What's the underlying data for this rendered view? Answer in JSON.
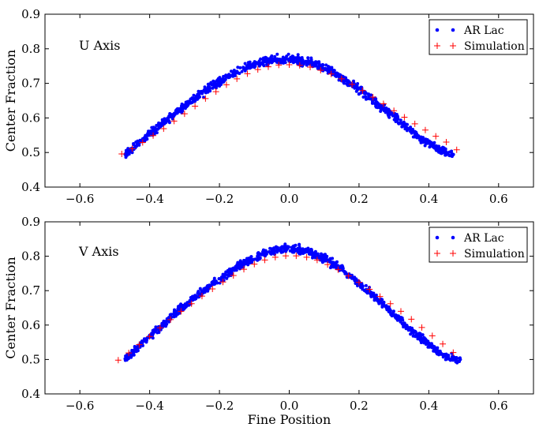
{
  "chart_data": [
    {
      "type": "scatter",
      "title": "",
      "annotation": "U Axis",
      "xlabel": "",
      "ylabel": "Center Fraction",
      "xlim": [
        -0.7,
        0.7
      ],
      "ylim": [
        0.4,
        0.9
      ],
      "xticks": [
        -0.6,
        -0.4,
        -0.2,
        0.0,
        0.2,
        0.4,
        0.6
      ],
      "xtick_labels": [
        "−0.6",
        "−0.4",
        "−0.2",
        "0.0",
        "0.2",
        "0.4",
        "0.6"
      ],
      "yticks": [
        0.4,
        0.5,
        0.6,
        0.7,
        0.8,
        0.9
      ],
      "ytick_labels": [
        "0.4",
        "0.5",
        "0.6",
        "0.7",
        "0.8",
        "0.9"
      ],
      "legend_position": "top-right",
      "grid": false,
      "series": [
        {
          "name": "AR Lac",
          "marker": "dot",
          "color": "#0000ff",
          "x": [
            -0.47,
            -0.45,
            -0.43,
            -0.41,
            -0.39,
            -0.37,
            -0.35,
            -0.33,
            -0.31,
            -0.29,
            -0.27,
            -0.25,
            -0.23,
            -0.21,
            -0.19,
            -0.17,
            -0.15,
            -0.13,
            -0.11,
            -0.09,
            -0.07,
            -0.05,
            -0.03,
            -0.01,
            0.01,
            0.03,
            0.05,
            0.07,
            0.09,
            0.11,
            0.13,
            0.15,
            0.17,
            0.19,
            0.21,
            0.23,
            0.25,
            0.27,
            0.29,
            0.31,
            0.33,
            0.35,
            0.37,
            0.39,
            0.41,
            0.43,
            0.45,
            0.47
          ],
          "y": [
            0.495,
            0.512,
            0.528,
            0.545,
            0.562,
            0.578,
            0.594,
            0.61,
            0.626,
            0.641,
            0.656,
            0.671,
            0.685,
            0.698,
            0.711,
            0.723,
            0.734,
            0.743,
            0.751,
            0.758,
            0.763,
            0.767,
            0.769,
            0.77,
            0.769,
            0.767,
            0.763,
            0.757,
            0.749,
            0.74,
            0.729,
            0.717,
            0.704,
            0.69,
            0.675,
            0.659,
            0.643,
            0.627,
            0.611,
            0.595,
            0.578,
            0.562,
            0.547,
            0.533,
            0.52,
            0.508,
            0.499,
            0.494
          ]
        },
        {
          "name": "Simulation",
          "marker": "plus",
          "color": "#ff0000",
          "x": [
            -0.48,
            -0.45,
            -0.42,
            -0.39,
            -0.36,
            -0.33,
            -0.3,
            -0.27,
            -0.24,
            -0.21,
            -0.18,
            -0.15,
            -0.12,
            -0.09,
            -0.06,
            -0.03,
            0.0,
            0.03,
            0.06,
            0.09,
            0.12,
            0.15,
            0.18,
            0.21,
            0.24,
            0.27,
            0.3,
            0.33,
            0.36,
            0.39,
            0.42,
            0.45,
            0.48
          ],
          "y": [
            0.496,
            0.511,
            0.529,
            0.549,
            0.569,
            0.591,
            0.612,
            0.634,
            0.656,
            0.676,
            0.696,
            0.713,
            0.728,
            0.74,
            0.748,
            0.753,
            0.754,
            0.752,
            0.747,
            0.738,
            0.727,
            0.713,
            0.697,
            0.679,
            0.66,
            0.641,
            0.621,
            0.602,
            0.583,
            0.565,
            0.547,
            0.53,
            0.508
          ]
        }
      ]
    },
    {
      "type": "scatter",
      "title": "",
      "annotation": "V Axis",
      "xlabel": "Fine Position",
      "ylabel": "Center Fraction",
      "xlim": [
        -0.7,
        0.7
      ],
      "ylim": [
        0.4,
        0.9
      ],
      "xticks": [
        -0.6,
        -0.4,
        -0.2,
        0.0,
        0.2,
        0.4,
        0.6
      ],
      "xtick_labels": [
        "−0.6",
        "−0.4",
        "−0.2",
        "0.0",
        "0.2",
        "0.4",
        "0.6"
      ],
      "yticks": [
        0.4,
        0.5,
        0.6,
        0.7,
        0.8,
        0.9
      ],
      "ytick_labels": [
        "0.4",
        "0.5",
        "0.6",
        "0.7",
        "0.8",
        "0.9"
      ],
      "legend_position": "top-right",
      "grid": false,
      "series": [
        {
          "name": "AR Lac",
          "marker": "dot",
          "color": "#0000ff",
          "x": [
            -0.47,
            -0.45,
            -0.43,
            -0.41,
            -0.39,
            -0.37,
            -0.35,
            -0.33,
            -0.31,
            -0.29,
            -0.27,
            -0.25,
            -0.23,
            -0.21,
            -0.19,
            -0.17,
            -0.15,
            -0.13,
            -0.11,
            -0.09,
            -0.07,
            -0.05,
            -0.03,
            -0.01,
            0.01,
            0.03,
            0.05,
            0.07,
            0.09,
            0.11,
            0.13,
            0.15,
            0.17,
            0.19,
            0.21,
            0.23,
            0.25,
            0.27,
            0.29,
            0.31,
            0.33,
            0.35,
            0.37,
            0.39,
            0.41,
            0.43,
            0.45,
            0.47,
            0.49
          ],
          "y": [
            0.502,
            0.52,
            0.538,
            0.557,
            0.576,
            0.595,
            0.613,
            0.631,
            0.648,
            0.665,
            0.681,
            0.697,
            0.712,
            0.727,
            0.741,
            0.754,
            0.767,
            0.779,
            0.789,
            0.799,
            0.807,
            0.813,
            0.818,
            0.821,
            0.821,
            0.819,
            0.815,
            0.808,
            0.799,
            0.788,
            0.775,
            0.761,
            0.746,
            0.729,
            0.712,
            0.695,
            0.678,
            0.66,
            0.642,
            0.624,
            0.605,
            0.587,
            0.569,
            0.552,
            0.536,
            0.521,
            0.508,
            0.502,
            0.5
          ]
        },
        {
          "name": "Simulation",
          "marker": "plus",
          "color": "#ff0000",
          "x": [
            -0.49,
            -0.46,
            -0.43,
            -0.4,
            -0.37,
            -0.34,
            -0.31,
            -0.28,
            -0.25,
            -0.22,
            -0.19,
            -0.16,
            -0.13,
            -0.1,
            -0.07,
            -0.04,
            -0.01,
            0.02,
            0.05,
            0.08,
            0.11,
            0.14,
            0.17,
            0.2,
            0.23,
            0.26,
            0.29,
            0.32,
            0.35,
            0.38,
            0.41,
            0.44,
            0.47
          ],
          "y": [
            0.498,
            0.519,
            0.543,
            0.567,
            0.592,
            0.616,
            0.64,
            0.662,
            0.684,
            0.705,
            0.725,
            0.744,
            0.762,
            0.777,
            0.789,
            0.797,
            0.801,
            0.801,
            0.797,
            0.789,
            0.776,
            0.761,
            0.743,
            0.724,
            0.704,
            0.683,
            0.662,
            0.64,
            0.617,
            0.593,
            0.569,
            0.545,
            0.52
          ]
        }
      ]
    }
  ]
}
